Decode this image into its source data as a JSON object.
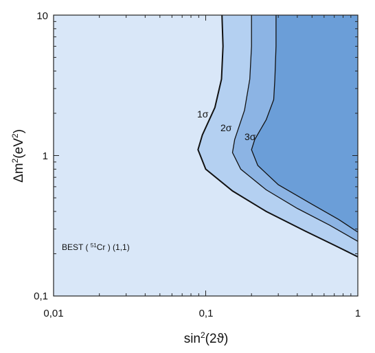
{
  "chart_data": {
    "type": "area",
    "xscale": "log",
    "yscale": "log",
    "xlim": [
      0.01,
      1
    ],
    "ylim": [
      0.1,
      10
    ],
    "xticks": [
      "0,01",
      "0,1",
      "1"
    ],
    "yticks": [
      "0,1",
      "1",
      "10"
    ],
    "xlabel_base": "sin",
    "xlabel_sup": "2",
    "xlabel_rest": "(2ϑ)",
    "ylabel_base": "Δm",
    "ylabel_sup1": "2",
    "ylabel_mid": "(eV",
    "ylabel_sup2": "2",
    "ylabel_end": ")",
    "annotation": {
      "prefix": "BEST ( ",
      "sup": "51",
      "suffix": "Cr ) (1,1)"
    },
    "contour_labels": [
      "1σ",
      "2σ",
      "3σ"
    ],
    "background_color": "#d9e7f8",
    "series": [
      {
        "name": "1σ",
        "color": "#b4d0f1",
        "points": [
          [
            0.128,
            10
          ],
          [
            0.13,
            6
          ],
          [
            0.127,
            3.5
          ],
          [
            0.115,
            2.2
          ],
          [
            0.095,
            1.4
          ],
          [
            0.089,
            1.1
          ],
          [
            0.1,
            0.8
          ],
          [
            0.15,
            0.56
          ],
          [
            0.25,
            0.4
          ],
          [
            0.45,
            0.29
          ],
          [
            0.7,
            0.23
          ],
          [
            1.0,
            0.19
          ]
        ]
      },
      {
        "name": "2σ",
        "color": "#8cb4e4",
        "points": [
          [
            0.2,
            10
          ],
          [
            0.2,
            6
          ],
          [
            0.195,
            3.5
          ],
          [
            0.18,
            2.1
          ],
          [
            0.155,
            1.3
          ],
          [
            0.15,
            1.05
          ],
          [
            0.17,
            0.8
          ],
          [
            0.25,
            0.57
          ],
          [
            0.4,
            0.42
          ],
          [
            0.65,
            0.32
          ],
          [
            1.0,
            0.245
          ]
        ]
      },
      {
        "name": "3σ",
        "color": "#6b9ed8",
        "points": [
          [
            0.29,
            10
          ],
          [
            0.29,
            6
          ],
          [
            0.285,
            3.5
          ],
          [
            0.28,
            2.5
          ],
          [
            0.25,
            1.8
          ],
          [
            0.21,
            1.3
          ],
          [
            0.2,
            1.1
          ],
          [
            0.22,
            0.85
          ],
          [
            0.3,
            0.62
          ],
          [
            0.5,
            0.45
          ],
          [
            0.75,
            0.35
          ],
          [
            1.0,
            0.285
          ]
        ]
      }
    ]
  }
}
